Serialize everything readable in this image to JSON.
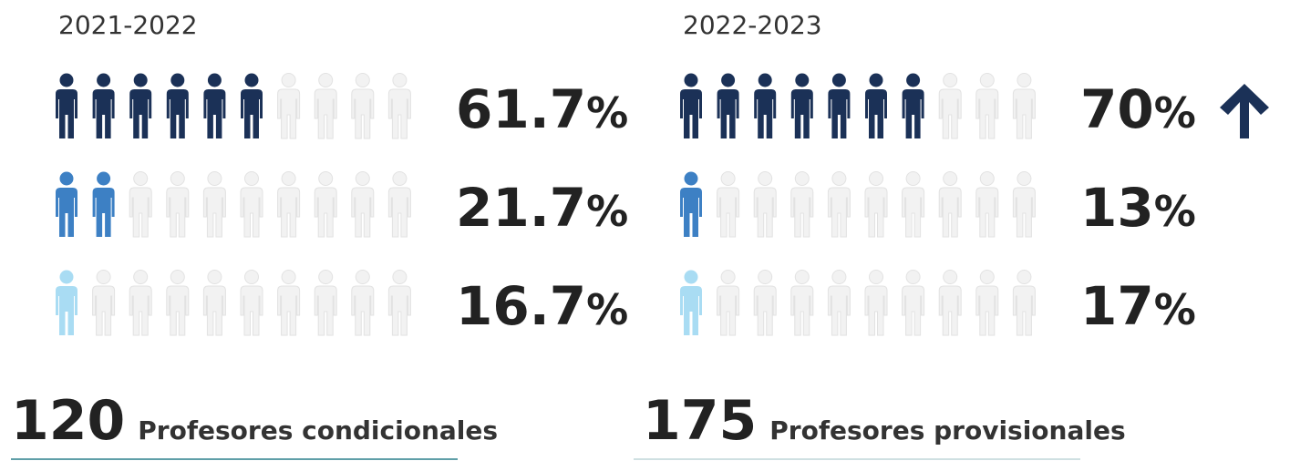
{
  "panels": [
    {
      "period": "2021-2022",
      "rows": [
        {
          "value": 61.7,
          "unit": "%",
          "filled": 6,
          "color": "#1b3157"
        },
        {
          "value": 21.7,
          "unit": "%",
          "filled": 2,
          "color": "#3d80c4"
        },
        {
          "value": 16.7,
          "unit": "%",
          "filled": 1,
          "color": "#a9dcf3"
        }
      ],
      "total": 120,
      "total_label": "Profesores condicionales"
    },
    {
      "period": "2022-2023",
      "rows": [
        {
          "value": 70,
          "unit": "%",
          "filled": 7,
          "color": "#1b3157"
        },
        {
          "value": 13,
          "unit": "%",
          "filled": 1,
          "color": "#3d80c4"
        },
        {
          "value": 17,
          "unit": "%",
          "filled": 1,
          "color": "#a9dcf3"
        }
      ],
      "total": 175,
      "total_label": "Profesores provisionales"
    }
  ]
}
